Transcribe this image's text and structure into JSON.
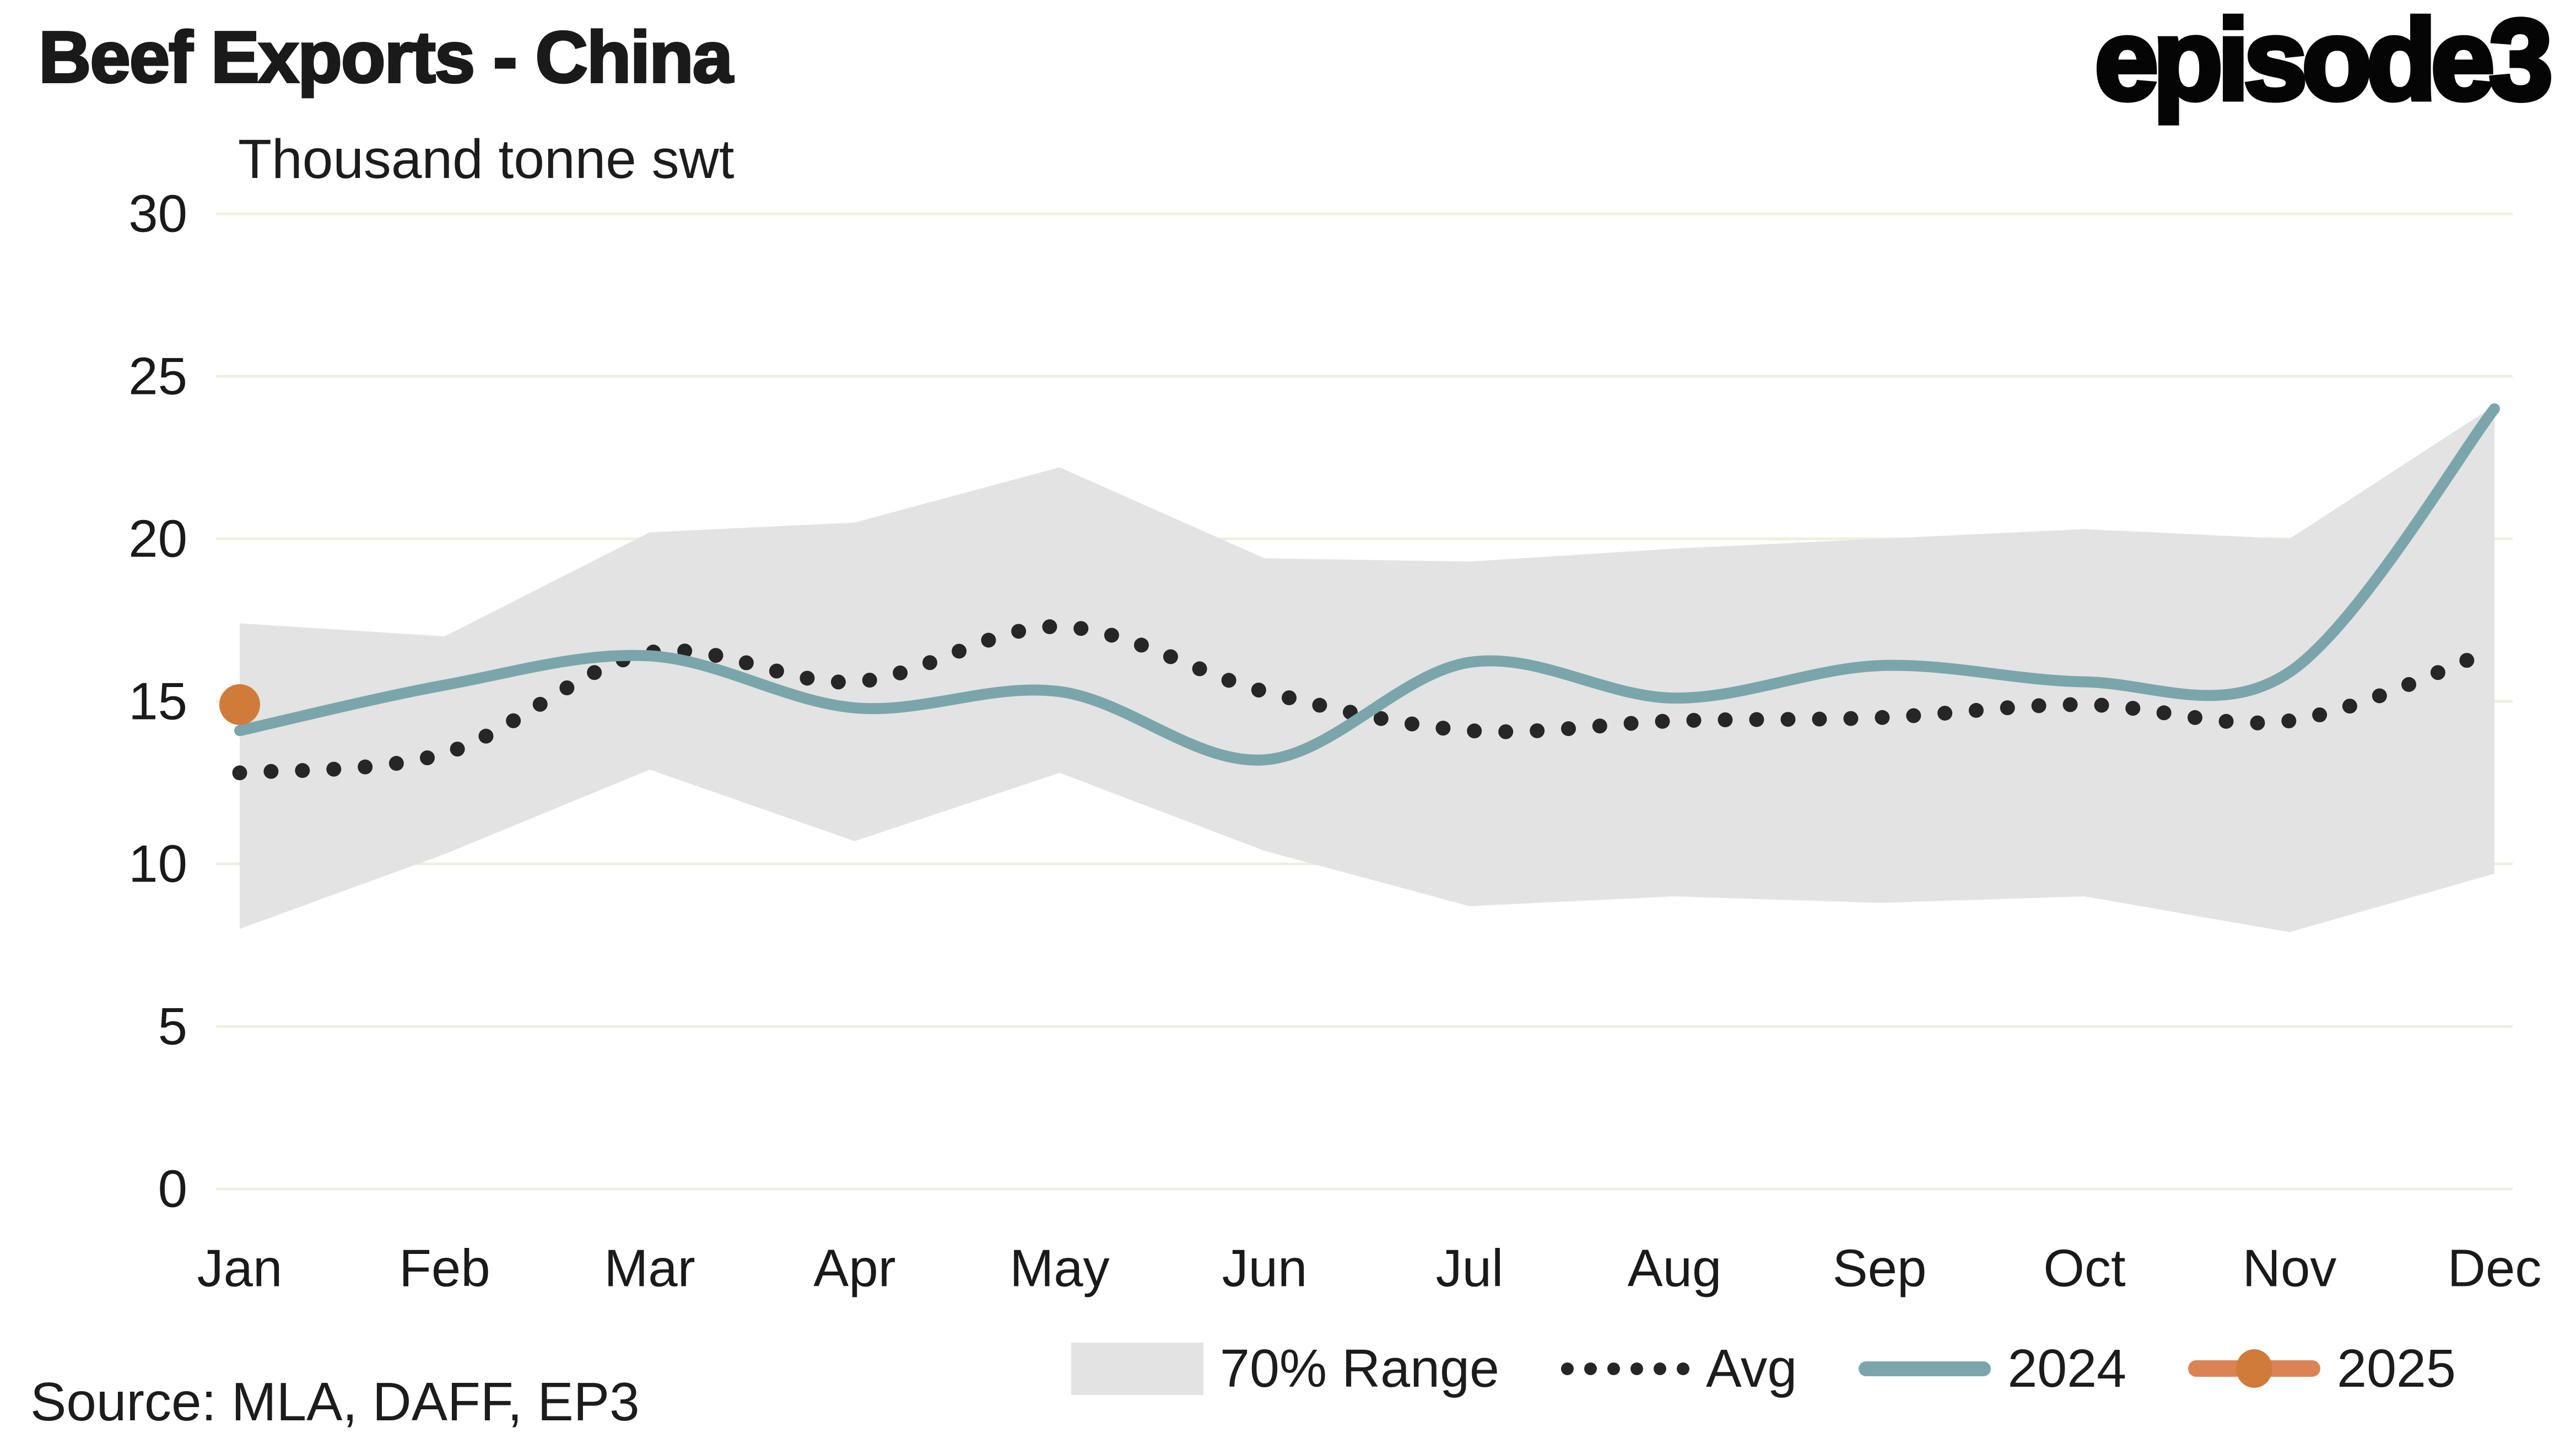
{
  "header": {
    "title": "Beef Exports - China",
    "subtitle": "Thousand tonne swt",
    "logo": "episode3"
  },
  "footer": {
    "source": "Source: MLA, DAFF, EP3"
  },
  "legend": {
    "items": [
      {
        "id": "range",
        "label": "70% Range",
        "color": "#E3E3E3"
      },
      {
        "id": "avg",
        "label": "Avg",
        "color": "#262626"
      },
      {
        "id": "y2024",
        "label": "2024",
        "color": "#7AA6AB"
      },
      {
        "id": "y2025",
        "label": "2025",
        "color": "#D07B3A"
      }
    ]
  },
  "colors": {
    "band": "#E3E3E3",
    "avg": "#262626",
    "line2024": "#7AA6AB",
    "point2025": "#D07B3A",
    "gridline": "#EFEEE2",
    "text": "#1a1a1a",
    "background": "#FFFFFF"
  },
  "chart_data": {
    "type": "line",
    "title": "Beef Exports - China",
    "unit_label": "Thousand tonne swt",
    "categories": [
      "Jan",
      "Feb",
      "Mar",
      "Apr",
      "May",
      "Jun",
      "Jul",
      "Aug",
      "Sep",
      "Oct",
      "Nov",
      "Dec"
    ],
    "ylim": [
      0,
      30
    ],
    "yticks": [
      0,
      5,
      10,
      15,
      20,
      25,
      30
    ],
    "grid": true,
    "legend_position": "bottom",
    "series": [
      {
        "name": "70% Range",
        "type": "band",
        "upper": [
          17.4,
          17.0,
          20.2,
          20.5,
          22.2,
          19.4,
          19.3,
          19.7,
          20.0,
          20.3,
          20.0,
          24.1
        ],
        "lower": [
          8.0,
          10.3,
          12.9,
          10.7,
          12.8,
          10.4,
          8.7,
          9.0,
          8.8,
          9.0,
          7.9,
          9.7
        ],
        "color": "#E3E3E3"
      },
      {
        "name": "Avg",
        "type": "line",
        "style": "dotted",
        "values": [
          12.8,
          13.4,
          16.5,
          15.6,
          17.3,
          15.3,
          14.1,
          14.4,
          14.5,
          14.9,
          14.4,
          16.6
        ],
        "color": "#262626"
      },
      {
        "name": "2024",
        "type": "line",
        "style": "solid",
        "values": [
          14.1,
          15.5,
          16.4,
          14.8,
          15.3,
          13.2,
          16.2,
          15.1,
          16.1,
          15.6,
          15.9,
          24.0
        ],
        "color": "#7AA6AB"
      },
      {
        "name": "2025",
        "type": "scatter",
        "values": [
          14.9,
          null,
          null,
          null,
          null,
          null,
          null,
          null,
          null,
          null,
          null,
          null
        ],
        "color": "#D07B3A"
      }
    ]
  }
}
